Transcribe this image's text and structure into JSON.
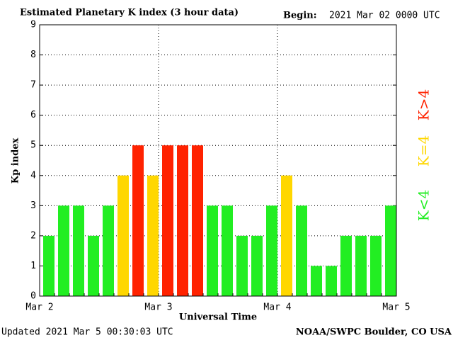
{
  "chart_data": {
    "type": "bar",
    "title": "Estimated Planetary K index (3 hour data)",
    "begin_label": "Begin:",
    "begin": "2021 Mar 02 0000 UTC",
    "y_label": "Kp index",
    "x_label": "Universal Time",
    "updated": "Updated 2021 Mar  5 00:30:03 UTC",
    "credit": "NOAA/SWPC Boulder, CO USA",
    "categories": [
      null,
      null,
      null,
      null,
      null,
      null,
      null,
      null,
      null,
      null,
      null,
      null,
      null,
      null,
      null,
      null,
      null,
      null,
      null,
      null,
      null,
      null,
      null,
      null
    ],
    "values": [
      2,
      3,
      3,
      2,
      3,
      4,
      5,
      4,
      5,
      5,
      5,
      3,
      3,
      2,
      2,
      3,
      4,
      3,
      1,
      1,
      2,
      2,
      2,
      3
    ],
    "colors": [
      "#22ee22",
      "#22ee22",
      "#22ee22",
      "#22ee22",
      "#22ee22",
      "#ffd700",
      "#ff2200",
      "#ffd700",
      "#ff2200",
      "#ff2200",
      "#ff2200",
      "#22ee22",
      "#22ee22",
      "#22ee22",
      "#22ee22",
      "#22ee22",
      "#ffd700",
      "#22ee22",
      "#22ee22",
      "#22ee22",
      "#22ee22",
      "#22ee22",
      "#22ee22",
      "#22ee22"
    ],
    "xtick_labels": [
      "Mar 2",
      "Mar 3",
      "Mar 4",
      "Mar 5"
    ],
    "ylim": [
      0,
      9
    ],
    "yticks": [
      0,
      1,
      2,
      3,
      4,
      5,
      6,
      7,
      8,
      9
    ],
    "grid": true,
    "legend": [
      {
        "label": "K<4",
        "color": "#22ee22"
      },
      {
        "label": "K=4",
        "color": "#ffd700"
      },
      {
        "label": "K>4",
        "color": "#ff2200"
      }
    ]
  }
}
